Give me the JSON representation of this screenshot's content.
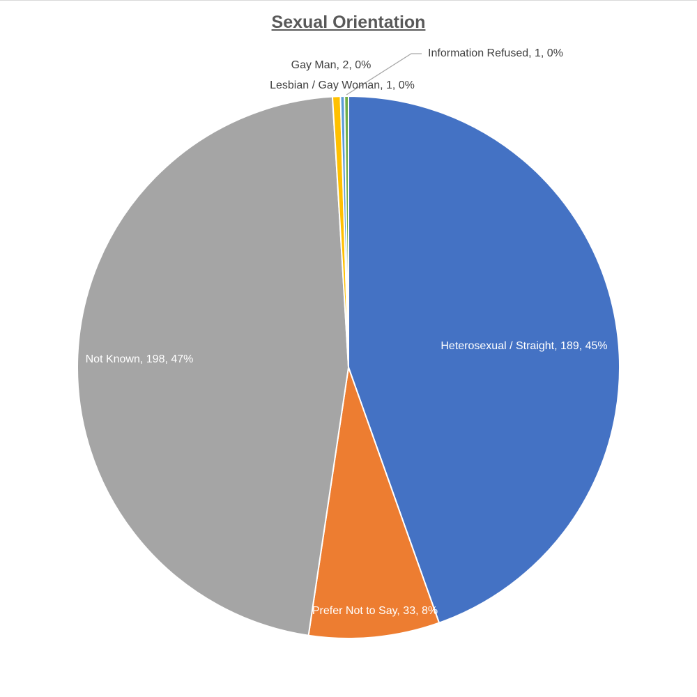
{
  "chart_data": {
    "type": "pie",
    "title": "Sexual Orientation",
    "slices": [
      {
        "name": "Heterosexual / Straight",
        "value": 189,
        "percent": "45%",
        "color": "#4472C4",
        "label": "Heterosexual / Straight, 189, 45%",
        "label_color": "#ffffff"
      },
      {
        "name": "Prefer Not to Say",
        "value": 33,
        "percent": "8%",
        "color": "#ED7D31",
        "label": "Prefer Not to Say, 33, 8%",
        "label_color": "#ffffff"
      },
      {
        "name": "Not Known",
        "value": 198,
        "percent": "47%",
        "color": "#A5A5A5",
        "label": "Not Known, 198, 47%",
        "label_color": "#ffffff"
      },
      {
        "name": "Gay Man",
        "value": 2,
        "percent": "0%",
        "color": "#FFC000",
        "label": "Gay Man, 2, 0%",
        "label_color": "#404040"
      },
      {
        "name": "Lesbian / Gay Woman",
        "value": 1,
        "percent": "0%",
        "color": "#5B9BD5",
        "label": "Lesbian / Gay Woman, 1, 0%",
        "label_color": "#404040"
      },
      {
        "name": "Information Refused",
        "value": 1,
        "percent": "0%",
        "color": "#70AD47",
        "label": "Information Refused, 1, 0%",
        "label_color": "#404040"
      }
    ]
  }
}
